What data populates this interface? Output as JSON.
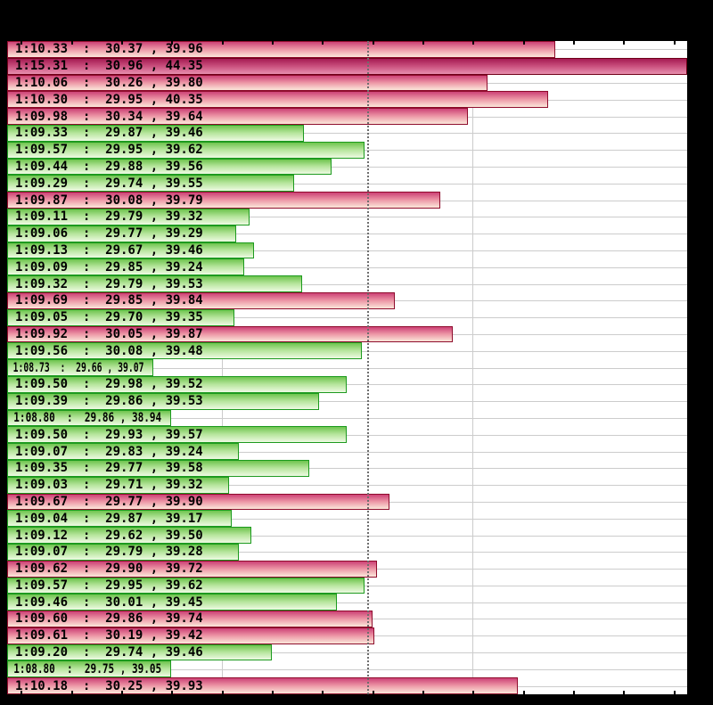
{
  "page": {
    "background": "#000000"
  },
  "chart_data": {
    "type": "bar",
    "orientation": "horizontal",
    "value_unit": "seconds",
    "x_axis": {
      "min": 68.146,
      "max": 70.855,
      "tick_start": 68.2,
      "tick_step": 0.2,
      "gridlines": [
        69.0,
        70.0
      ],
      "average_line": 69.582,
      "grid": true
    },
    "legend": "none",
    "colors": {
      "page_background": "#000000",
      "plot_background": "#ffffff",
      "gridline": "#cccccc",
      "row_guideline": "#cccccc",
      "average_line": "#6e6e6e",
      "tick": "#000000",
      "label_text": "#000000",
      "bands": {
        "above": {
          "border": "#8e0c2c",
          "gradient": [
            "#cd4276",
            "#ec95a5",
            "#fbe7da"
          ]
        },
        "below": {
          "border": "#1d9a1f",
          "gradient": [
            "#6ec44e",
            "#b6e59c",
            "#edfae2"
          ]
        },
        "outlier": {
          "border": "#6f0019",
          "gradient": [
            "#a51b52",
            "#c94f7d",
            "#e88fae"
          ]
        }
      }
    },
    "laps": [
      {
        "label": "1:10.33  :  30.37 , 39.96",
        "time": "1:10.33",
        "time_s": 70.33,
        "sector1": 30.37,
        "sector2": 39.96,
        "band": "above"
      },
      {
        "label": "1:15.31  :  30.96 , 44.35",
        "time": "1:15.31",
        "time_s": 75.31,
        "sector1": 30.96,
        "sector2": 44.35,
        "band": "outlier"
      },
      {
        "label": "1:10.06  :  30.26 , 39.80",
        "time": "1:10.06",
        "time_s": 70.06,
        "sector1": 30.26,
        "sector2": 39.8,
        "band": "above"
      },
      {
        "label": "1:10.30  :  29.95 , 40.35",
        "time": "1:10.30",
        "time_s": 70.3,
        "sector1": 29.95,
        "sector2": 40.35,
        "band": "above"
      },
      {
        "label": "1:09.98  :  30.34 , 39.64",
        "time": "1:09.98",
        "time_s": 69.98,
        "sector1": 30.34,
        "sector2": 39.64,
        "band": "above"
      },
      {
        "label": "1:09.33  :  29.87 , 39.46",
        "time": "1:09.33",
        "time_s": 69.33,
        "sector1": 29.87,
        "sector2": 39.46,
        "band": "below"
      },
      {
        "label": "1:09.57  :  29.95 , 39.62",
        "time": "1:09.57",
        "time_s": 69.57,
        "sector1": 29.95,
        "sector2": 39.62,
        "band": "below"
      },
      {
        "label": "1:09.44  :  29.88 , 39.56",
        "time": "1:09.44",
        "time_s": 69.44,
        "sector1": 29.88,
        "sector2": 39.56,
        "band": "below"
      },
      {
        "label": "1:09.29  :  29.74 , 39.55",
        "time": "1:09.29",
        "time_s": 69.29,
        "sector1": 29.74,
        "sector2": 39.55,
        "band": "below"
      },
      {
        "label": "1:09.87  :  30.08 , 39.79",
        "time": "1:09.87",
        "time_s": 69.87,
        "sector1": 30.08,
        "sector2": 39.79,
        "band": "above"
      },
      {
        "label": "1:09.11  :  29.79 , 39.32",
        "time": "1:09.11",
        "time_s": 69.11,
        "sector1": 29.79,
        "sector2": 39.32,
        "band": "below"
      },
      {
        "label": "1:09.06  :  29.77 , 39.29",
        "time": "1:09.06",
        "time_s": 69.06,
        "sector1": 29.77,
        "sector2": 39.29,
        "band": "below"
      },
      {
        "label": "1:09.13  :  29.67 , 39.46",
        "time": "1:09.13",
        "time_s": 69.13,
        "sector1": 29.67,
        "sector2": 39.46,
        "band": "below"
      },
      {
        "label": "1:09.09  :  29.85 , 39.24",
        "time": "1:09.09",
        "time_s": 69.09,
        "sector1": 29.85,
        "sector2": 39.24,
        "band": "below"
      },
      {
        "label": "1:09.32  :  29.79 , 39.53",
        "time": "1:09.32",
        "time_s": 69.32,
        "sector1": 29.79,
        "sector2": 39.53,
        "band": "below"
      },
      {
        "label": "1:09.69  :  29.85 , 39.84",
        "time": "1:09.69",
        "time_s": 69.69,
        "sector1": 29.85,
        "sector2": 39.84,
        "band": "above"
      },
      {
        "label": "1:09.05  :  29.70 , 39.35",
        "time": "1:09.05",
        "time_s": 69.05,
        "sector1": 29.7,
        "sector2": 39.35,
        "band": "below"
      },
      {
        "label": "1:09.92  :  30.05 , 39.87",
        "time": "1:09.92",
        "time_s": 69.92,
        "sector1": 30.05,
        "sector2": 39.87,
        "band": "above"
      },
      {
        "label": "1:09.56  :  30.08 , 39.48",
        "time": "1:09.56",
        "time_s": 69.56,
        "sector1": 30.08,
        "sector2": 39.48,
        "band": "below"
      },
      {
        "label": "1:08.73  :  29.66 , 39.07",
        "time": "1:08.73",
        "time_s": 68.73,
        "sector1": 29.66,
        "sector2": 39.07,
        "band": "below"
      },
      {
        "label": "1:09.50  :  29.98 , 39.52",
        "time": "1:09.50",
        "time_s": 69.5,
        "sector1": 29.98,
        "sector2": 39.52,
        "band": "below"
      },
      {
        "label": "1:09.39  :  29.86 , 39.53",
        "time": "1:09.39",
        "time_s": 69.39,
        "sector1": 29.86,
        "sector2": 39.53,
        "band": "below"
      },
      {
        "label": "1:08.80  :  29.86 , 38.94",
        "time": "1:08.80",
        "time_s": 68.8,
        "sector1": 29.86,
        "sector2": 38.94,
        "band": "below"
      },
      {
        "label": "1:09.50  :  29.93 , 39.57",
        "time": "1:09.50",
        "time_s": 69.5,
        "sector1": 29.93,
        "sector2": 39.57,
        "band": "below"
      },
      {
        "label": "1:09.07  :  29.83 , 39.24",
        "time": "1:09.07",
        "time_s": 69.07,
        "sector1": 29.83,
        "sector2": 39.24,
        "band": "below"
      },
      {
        "label": "1:09.35  :  29.77 , 39.58",
        "time": "1:09.35",
        "time_s": 69.35,
        "sector1": 29.77,
        "sector2": 39.58,
        "band": "below"
      },
      {
        "label": "1:09.03  :  29.71 , 39.32",
        "time": "1:09.03",
        "time_s": 69.03,
        "sector1": 29.71,
        "sector2": 39.32,
        "band": "below"
      },
      {
        "label": "1:09.67  :  29.77 , 39.90",
        "time": "1:09.67",
        "time_s": 69.67,
        "sector1": 29.77,
        "sector2": 39.9,
        "band": "above"
      },
      {
        "label": "1:09.04  :  29.87 , 39.17",
        "time": "1:09.04",
        "time_s": 69.04,
        "sector1": 29.87,
        "sector2": 39.17,
        "band": "below"
      },
      {
        "label": "1:09.12  :  29.62 , 39.50",
        "time": "1:09.12",
        "time_s": 69.12,
        "sector1": 29.62,
        "sector2": 39.5,
        "band": "below"
      },
      {
        "label": "1:09.07  :  29.79 , 39.28",
        "time": "1:09.07",
        "time_s": 69.07,
        "sector1": 29.79,
        "sector2": 39.28,
        "band": "below"
      },
      {
        "label": "1:09.62  :  29.90 , 39.72",
        "time": "1:09.62",
        "time_s": 69.62,
        "sector1": 29.9,
        "sector2": 39.72,
        "band": "above"
      },
      {
        "label": "1:09.57  :  29.95 , 39.62",
        "time": "1:09.57",
        "time_s": 69.57,
        "sector1": 29.95,
        "sector2": 39.62,
        "band": "below"
      },
      {
        "label": "1:09.46  :  30.01 , 39.45",
        "time": "1:09.46",
        "time_s": 69.46,
        "sector1": 30.01,
        "sector2": 39.45,
        "band": "below"
      },
      {
        "label": "1:09.60  :  29.86 , 39.74",
        "time": "1:09.60",
        "time_s": 69.6,
        "sector1": 29.86,
        "sector2": 39.74,
        "band": "above"
      },
      {
        "label": "1:09.61  :  30.19 , 39.42",
        "time": "1:09.61",
        "time_s": 69.61,
        "sector1": 30.19,
        "sector2": 39.42,
        "band": "above"
      },
      {
        "label": "1:09.20  :  29.74 , 39.46",
        "time": "1:09.20",
        "time_s": 69.2,
        "sector1": 29.74,
        "sector2": 39.46,
        "band": "below"
      },
      {
        "label": "1:08.80  :  29.75 , 39.05",
        "time": "1:08.80",
        "time_s": 68.8,
        "sector1": 29.75,
        "sector2": 39.05,
        "band": "below"
      },
      {
        "label": "1:10.18  :  30.25 , 39.93",
        "time": "1:10.18",
        "time_s": 70.18,
        "sector1": 30.25,
        "sector2": 39.93,
        "band": "above"
      }
    ]
  }
}
